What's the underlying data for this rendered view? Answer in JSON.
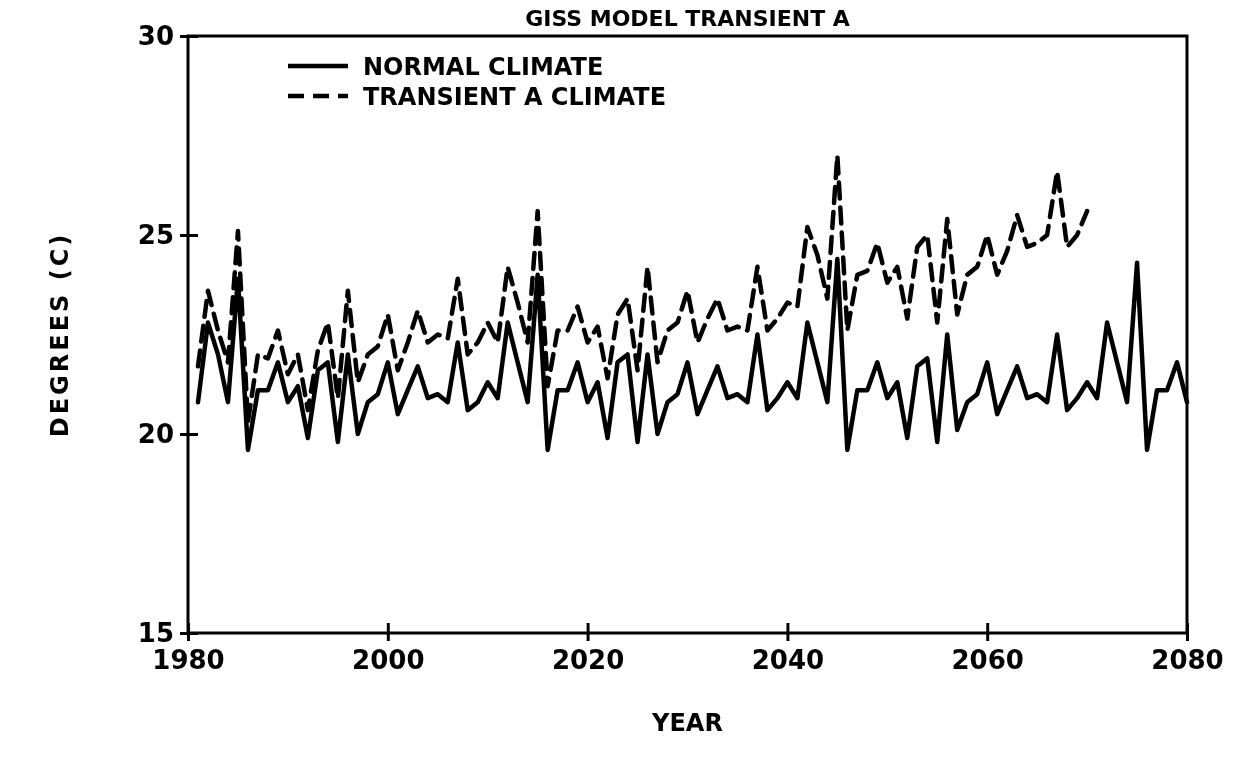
{
  "chart_data": {
    "type": "line",
    "title": "GISS MODEL TRANSIENT A",
    "xlabel": "YEAR",
    "ylabel": "DEGREES (C)",
    "xlim": [
      1980,
      2080
    ],
    "xticks": [
      1980,
      2000,
      2020,
      2040,
      2060,
      2080
    ],
    "ylim": [
      15,
      30
    ],
    "yticks": [
      15,
      20,
      25,
      30
    ],
    "legend": "top left",
    "grid": false,
    "marker": "none",
    "series": [
      {
        "name": "NORMAL CLIMATE",
        "color": "#000000",
        "line_style": "solid",
        "x": [
          1981,
          1982,
          1983,
          1984,
          1985,
          1986,
          1987,
          1988,
          1989,
          1990,
          1991,
          1992,
          1993,
          1994,
          1995,
          1996,
          1997,
          1998,
          1999,
          2000,
          2001,
          2002,
          2003,
          2004,
          2005,
          2006,
          2007,
          2008,
          2009,
          2010,
          2011,
          2012,
          2013,
          2014,
          2015,
          2016,
          2017,
          2018,
          2019,
          2020,
          2021,
          2022,
          2023,
          2024,
          2025,
          2026,
          2027,
          2028,
          2029,
          2030,
          2031,
          2032,
          2033,
          2034,
          2035,
          2036,
          2037,
          2038,
          2039,
          2040,
          2041,
          2042,
          2043,
          2044,
          2045,
          2046,
          2047,
          2048,
          2049,
          2050,
          2051,
          2052,
          2053,
          2054,
          2055,
          2056,
          2057,
          2058,
          2059,
          2060,
          2061,
          2062,
          2063,
          2064,
          2065,
          2066,
          2067,
          2068,
          2069,
          2070,
          2071,
          2072,
          2073,
          2074,
          2075,
          2076,
          2077,
          2078,
          2079,
          2080
        ],
        "values": [
          20.8,
          22.8,
          22.0,
          20.8,
          23.9,
          19.6,
          21.1,
          21.1,
          21.8,
          20.8,
          21.2,
          19.9,
          21.6,
          21.8,
          19.8,
          22.0,
          20.0,
          20.8,
          21.0,
          21.8,
          20.5,
          21.1,
          21.7,
          20.9,
          21.0,
          20.8,
          22.3,
          20.6,
          20.8,
          21.3,
          20.9,
          22.8,
          21.8,
          20.8,
          24.0,
          19.6,
          21.1,
          21.1,
          21.8,
          20.8,
          21.3,
          19.9,
          21.8,
          22.0,
          19.8,
          22.0,
          20.0,
          20.8,
          21.0,
          21.8,
          20.5,
          21.1,
          21.7,
          20.9,
          21.0,
          20.8,
          22.5,
          20.6,
          20.9,
          21.3,
          20.9,
          22.8,
          21.8,
          20.8,
          24.4,
          19.6,
          21.1,
          21.1,
          21.8,
          20.9,
          21.3,
          19.9,
          21.7,
          21.9,
          19.8,
          22.5,
          20.1,
          20.8,
          21.0,
          21.8,
          20.5,
          21.1,
          21.7,
          20.9,
          21.0,
          20.8,
          22.5,
          20.6,
          20.9,
          21.3,
          20.9,
          22.8,
          21.8,
          20.8,
          24.3,
          19.6,
          21.1,
          21.1,
          21.8,
          20.8
        ]
      },
      {
        "name": "TRANSIENT A CLIMATE",
        "color": "#000000",
        "line_style": "dashed",
        "x": [
          1981,
          1982,
          1983,
          1984,
          1985,
          1986,
          1987,
          1988,
          1989,
          1990,
          1991,
          1992,
          1993,
          1994,
          1995,
          1996,
          1997,
          1998,
          1999,
          2000,
          2001,
          2002,
          2003,
          2004,
          2005,
          2006,
          2007,
          2008,
          2009,
          2010,
          2011,
          2012,
          2013,
          2014,
          2015,
          2016,
          2017,
          2018,
          2019,
          2020,
          2021,
          2022,
          2023,
          2024,
          2025,
          2026,
          2027,
          2028,
          2029,
          2030,
          2031,
          2032,
          2033,
          2034,
          2035,
          2036,
          2037,
          2038,
          2039,
          2040,
          2041,
          2042,
          2043,
          2044,
          2045,
          2046,
          2047,
          2048,
          2049,
          2050,
          2051,
          2052,
          2053,
          2054,
          2055,
          2056,
          2057,
          2058,
          2059,
          2060,
          2061,
          2062,
          2063,
          2064,
          2065,
          2066,
          2067,
          2068,
          2069,
          2070
        ],
        "values": [
          21.7,
          23.6,
          22.6,
          21.8,
          25.1,
          20.3,
          22.0,
          21.9,
          22.6,
          21.5,
          22.0,
          20.6,
          22.1,
          22.8,
          20.9,
          23.6,
          21.3,
          22.0,
          22.2,
          23.0,
          21.6,
          22.3,
          23.1,
          22.3,
          22.5,
          22.4,
          23.9,
          22.0,
          22.3,
          22.8,
          22.3,
          24.2,
          23.3,
          22.3,
          25.6,
          21.2,
          22.6,
          22.6,
          23.2,
          22.3,
          22.7,
          21.4,
          23.0,
          23.4,
          21.6,
          24.2,
          21.8,
          22.6,
          22.8,
          23.6,
          22.3,
          22.9,
          23.4,
          22.6,
          22.7,
          22.6,
          24.2,
          22.6,
          22.9,
          23.3,
          23.2,
          25.2,
          24.5,
          23.4,
          27.0,
          22.6,
          24.0,
          24.1,
          24.8,
          23.8,
          24.2,
          22.9,
          24.7,
          25.0,
          22.8,
          25.4,
          23.0,
          24.0,
          24.2,
          25.0,
          24.0,
          24.6,
          25.5,
          24.7,
          24.8,
          25.0,
          26.6,
          24.7,
          25.0,
          25.6
        ]
      }
    ]
  }
}
